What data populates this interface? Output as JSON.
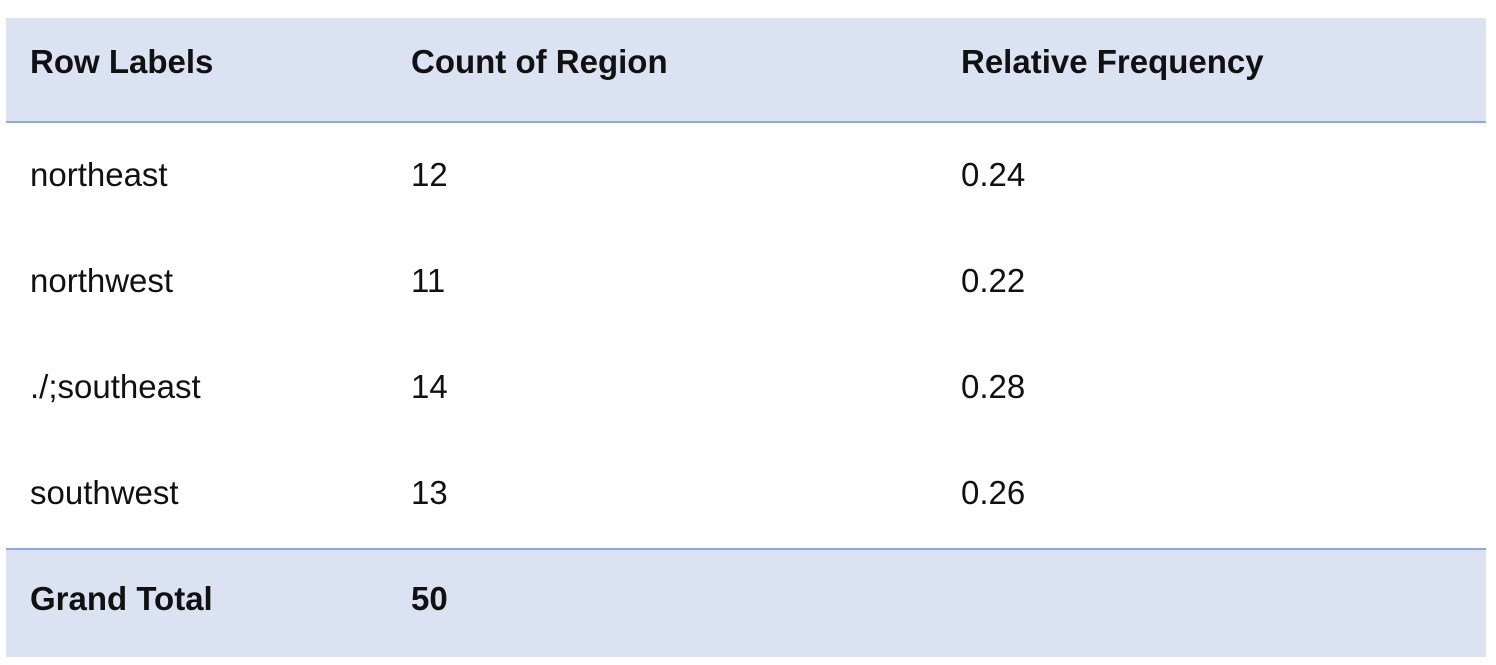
{
  "table": {
    "headers": [
      "Row Labels",
      "Count of Region",
      "Relative Frequency"
    ],
    "rows": [
      {
        "label": "northeast",
        "count": "12",
        "relative_frequency": "0.24"
      },
      {
        "label": "northwest",
        "count": "11",
        "relative_frequency": "0.22"
      },
      {
        "label": "./;southeast",
        "count": "14",
        "relative_frequency": "0.28"
      },
      {
        "label": "southwest",
        "count": "13",
        "relative_frequency": "0.26"
      }
    ],
    "total": {
      "label": "Grand Total",
      "count": "50",
      "relative_frequency": ""
    }
  },
  "colors": {
    "header_background": "#dbe2f1",
    "border": "#8eaadb",
    "text": "#111111"
  }
}
